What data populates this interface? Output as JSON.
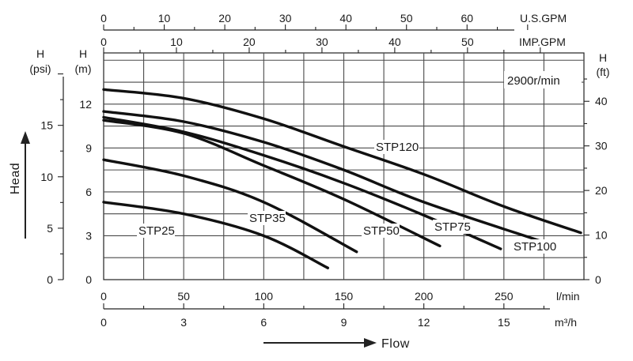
{
  "chart_data": {
    "type": "line",
    "speed_note": "2900r/min",
    "flow_label": "Flow",
    "head_label": "Head",
    "x_axes": {
      "lmin": {
        "unit": "l/min",
        "range": [
          0,
          300
        ],
        "ticks": [
          0,
          50,
          100,
          150,
          200,
          250
        ]
      },
      "m3h": {
        "unit": "m³/h",
        "range": [
          0,
          18
        ],
        "ticks": [
          0,
          3,
          6,
          9,
          12,
          15
        ]
      },
      "imp_gpm": {
        "unit": "IMP.GPM",
        "range": [
          0,
          66
        ],
        "ticks": [
          0,
          10,
          20,
          30,
          40,
          50
        ]
      },
      "us_gpm": {
        "unit": "U.S.GPM",
        "range": [
          0,
          79.3
        ],
        "ticks": [
          0,
          10,
          20,
          30,
          40,
          50,
          60
        ]
      }
    },
    "y_axes": {
      "m": {
        "title_top": "H",
        "title_bottom": "(m)",
        "range": [
          0,
          15.5
        ],
        "ticks": [
          0,
          3,
          6,
          9,
          12
        ]
      },
      "psi": {
        "title_top": "H",
        "title_bottom": "(psi)",
        "range": [
          0,
          22.04
        ],
        "ticks": [
          0,
          5,
          10,
          15
        ]
      },
      "ft": {
        "title_top": "H",
        "title_bottom": "(ft)",
        "range": [
          0,
          50.85
        ],
        "ticks": [
          0,
          10,
          20,
          30,
          40
        ]
      }
    },
    "grid": true,
    "series": [
      {
        "name": "STP25",
        "unit_x": "l/min",
        "unit_y": "m",
        "points": [
          [
            0,
            5.3
          ],
          [
            50,
            4.5
          ],
          [
            100,
            3.0
          ],
          [
            140,
            0.8
          ]
        ]
      },
      {
        "name": "STP35",
        "unit_x": "l/min",
        "unit_y": "m",
        "points": [
          [
            0,
            8.2
          ],
          [
            50,
            7.1
          ],
          [
            100,
            5.3
          ],
          [
            158,
            1.9
          ]
        ]
      },
      {
        "name": "STP50",
        "unit_x": "l/min",
        "unit_y": "m",
        "points": [
          [
            0,
            10.9
          ],
          [
            50,
            10.0
          ],
          [
            100,
            7.8
          ],
          [
            150,
            5.5
          ],
          [
            210,
            2.3
          ]
        ]
      },
      {
        "name": "STP75",
        "unit_x": "l/min",
        "unit_y": "m",
        "points": [
          [
            0,
            11.1
          ],
          [
            50,
            10.1
          ],
          [
            100,
            8.5
          ],
          [
            150,
            6.6
          ],
          [
            200,
            4.4
          ],
          [
            248,
            2.1
          ]
        ]
      },
      {
        "name": "STP100",
        "unit_x": "l/min",
        "unit_y": "m",
        "points": [
          [
            0,
            11.5
          ],
          [
            50,
            10.8
          ],
          [
            100,
            9.4
          ],
          [
            150,
            7.5
          ],
          [
            200,
            5.3
          ],
          [
            274,
            2.6
          ]
        ]
      },
      {
        "name": "STP120",
        "unit_x": "l/min",
        "unit_y": "m",
        "points": [
          [
            0,
            13.0
          ],
          [
            50,
            12.4
          ],
          [
            100,
            11.0
          ],
          [
            150,
            9.1
          ],
          [
            200,
            7.2
          ],
          [
            250,
            5.0
          ],
          [
            298,
            3.2
          ]
        ]
      }
    ]
  }
}
